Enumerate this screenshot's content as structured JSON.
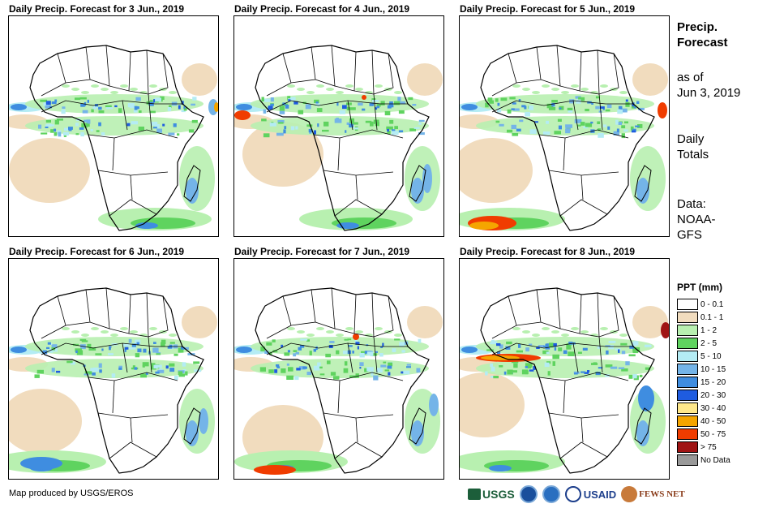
{
  "panels": [
    {
      "title": "Daily Precip. Forecast for 3 Jun., 2019"
    },
    {
      "title": "Daily Precip. Forecast for 4 Jun., 2019"
    },
    {
      "title": "Daily Precip. Forecast for 5 Jun., 2019"
    },
    {
      "title": "Daily Precip. Forecast for 6 Jun., 2019"
    },
    {
      "title": "Daily Precip. Forecast for 7 Jun., 2019"
    },
    {
      "title": "Daily Precip. Forecast for 8 Jun., 2019"
    }
  ],
  "side": {
    "title_line1": "Precip.",
    "title_line2": "Forecast",
    "asof_line1": "as of",
    "asof_line2": "Jun 3, 2019",
    "totals_line1": "Daily",
    "totals_line2": "Totals",
    "data_line1": "Data:",
    "data_line2": "NOAA-",
    "data_line3": "GFS"
  },
  "legend": {
    "title": "PPT (mm)",
    "items": [
      {
        "label": "0 - 0.1",
        "color": "#ffffff"
      },
      {
        "label": "0.1 - 1",
        "color": "#f1dcbe"
      },
      {
        "label": "1 - 2",
        "color": "#b8f0b0"
      },
      {
        "label": "2 - 5",
        "color": "#5fd35f"
      },
      {
        "label": "5 - 10",
        "color": "#b4ecf4"
      },
      {
        "label": "10 - 15",
        "color": "#74b4e8"
      },
      {
        "label": "15 - 20",
        "color": "#3f8de0"
      },
      {
        "label": "20 - 30",
        "color": "#1f5ce0"
      },
      {
        "label": "30 - 40",
        "color": "#ffe88a"
      },
      {
        "label": "40 - 50",
        "color": "#f5a500"
      },
      {
        "label": "50 - 75",
        "color": "#f03c00"
      },
      {
        "label": "> 75",
        "color": "#a01414"
      },
      {
        "label": "No Data",
        "color": "#999999"
      }
    ]
  },
  "credit": "Map produced by USGS/EROS",
  "logos": {
    "usgs": "USGS",
    "usaid": "USAID",
    "fews": "FEWS NET"
  }
}
